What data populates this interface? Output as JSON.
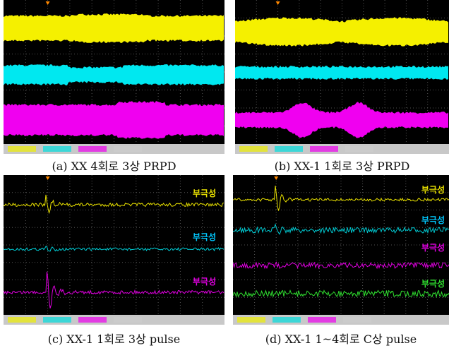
{
  "panels": [
    {
      "caption": "(a) XX 4회로 3상 PRPD"
    },
    {
      "caption": "(b) XX-1 1회로 3상 PRPD"
    },
    {
      "caption": "(c) XX-1 1회로 3상 pulse",
      "labels": [
        "부극성",
        "부극성",
        "부극성"
      ]
    },
    {
      "caption": "(d) XX-1 1~4회로 C상 pulse",
      "labels": [
        "부극성",
        "부극성",
        "부극성",
        "부극성"
      ]
    }
  ]
}
